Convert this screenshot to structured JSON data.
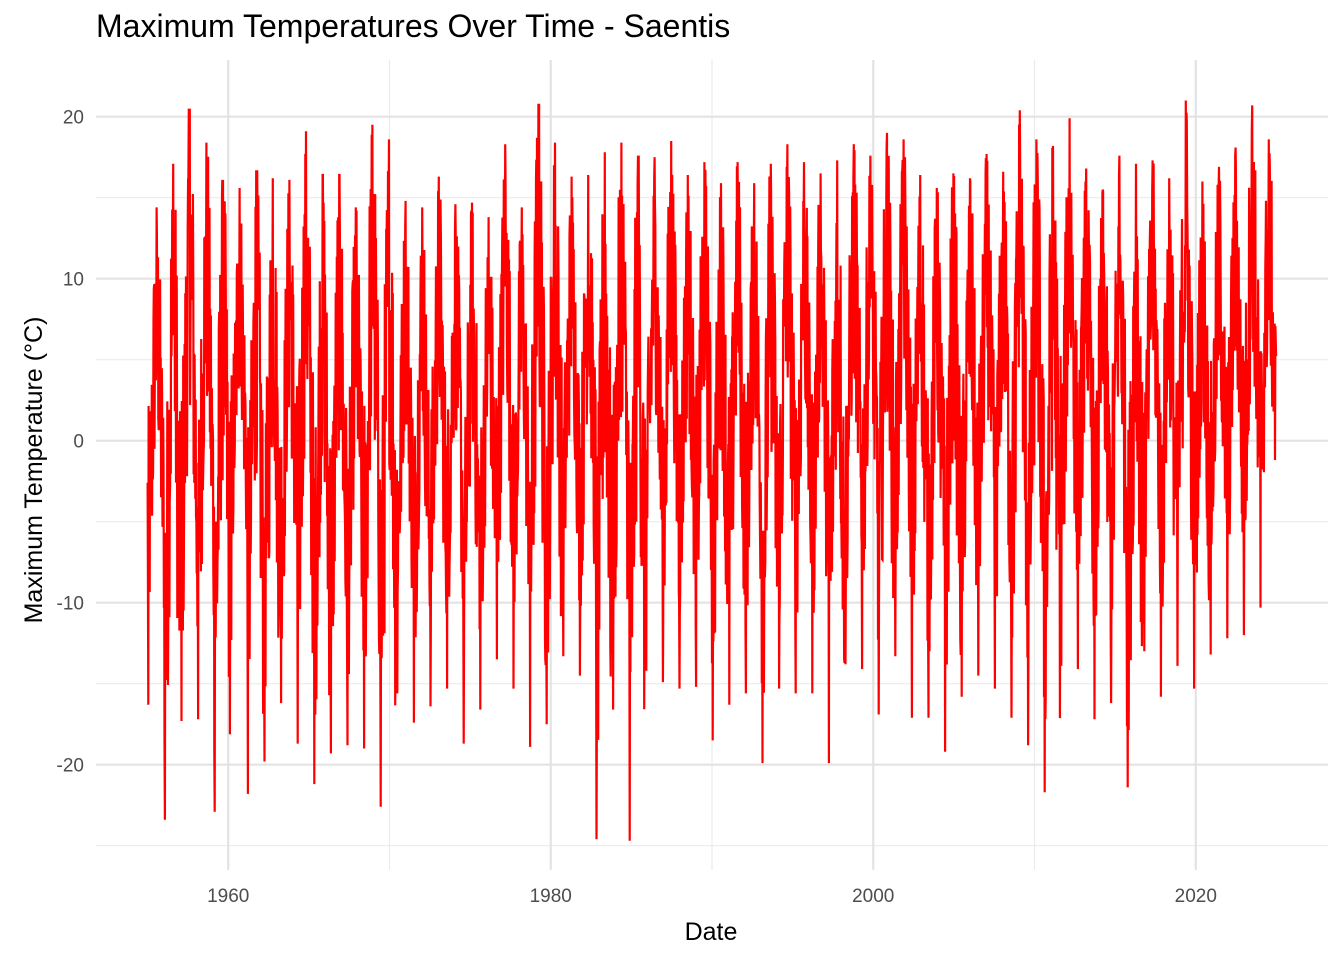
{
  "chart_data": {
    "type": "line",
    "title": "Maximum Temperatures Over Time - Saentis",
    "xlabel": "Date",
    "ylabel": "Maximum Temperature (°C)",
    "x_range": [
      1955,
      2025
    ],
    "xlim": [
      1951.8,
      2028.2
    ],
    "ylim": [
      -26.5,
      23.5
    ],
    "x_ticks": [
      1960,
      1980,
      2000,
      2020
    ],
    "x_tick_labels": [
      "1960",
      "1980",
      "2000",
      "2020"
    ],
    "x_minor_ticks": [
      1950,
      1970,
      1990,
      2010
    ],
    "y_ticks": [
      -20,
      -10,
      0,
      10,
      20
    ],
    "y_tick_labels": [
      "-20",
      "-10",
      "0",
      "10",
      "20"
    ],
    "y_minor_ticks": [
      -25,
      -15,
      -5,
      5,
      15
    ],
    "grid": true,
    "legend": "none",
    "series": [
      {
        "color": "#ff0000",
        "note": "daily maximum temperatures; annual cycle with peaks and troughs per year",
        "annual_peaks": [
          14.4,
          17.1,
          20.5,
          18.4,
          16.1,
          15.6,
          16.7,
          16.2,
          16.1,
          19.1,
          16.4,
          16.4,
          14.4,
          19.5,
          18.6,
          14.8,
          14.4,
          16.3,
          14.6,
          14.7,
          13.8,
          18.3,
          14.4,
          20.8,
          18.4,
          16.3,
          16.4,
          17.8,
          18.4,
          17.6,
          17.5,
          18.5,
          16.4,
          17.2,
          15.9,
          17.2,
          15.9,
          17.1,
          18.3,
          17.2,
          16.5,
          17.3,
          18.3,
          17.6,
          19.0,
          18.6,
          16.4,
          15.6,
          16.5,
          16.2,
          17.7,
          16.6,
          20.4,
          18.6,
          18.2,
          19.9,
          16.8,
          15.5,
          17.6,
          17.1,
          17.3,
          16.2,
          21.0,
          16.0,
          16.9,
          18.1,
          20.7,
          18.6
        ],
        "annual_troughs": [
          -16.3,
          -23.4,
          -17.3,
          -17.2,
          -22.9,
          -12.3,
          -21.8,
          -19.8,
          -16.2,
          -18.7,
          -21.2,
          -19.3,
          -18.8,
          -19.0,
          -22.6,
          -15.6,
          -17.4,
          -16.4,
          -15.3,
          -18.7,
          -16.6,
          -13.5,
          -15.3,
          -18.9,
          -17.5,
          -13.3,
          -14.5,
          -24.6,
          -16.6,
          -24.7,
          -14.2,
          -14.9,
          -15.3,
          -15.2,
          -18.5,
          -16.3,
          -15.6,
          -19.9,
          -15.3,
          -15.6,
          -15.6,
          -19.9,
          -13.8,
          -14.1,
          -16.9,
          -13.3,
          -17.1,
          -17.1,
          -19.2,
          -15.8,
          -14.5,
          -15.3,
          -17.1,
          -18.8,
          -21.7,
          -13.9,
          -14.1,
          -17.2,
          -16.2,
          -21.4,
          -13.0,
          -15.8,
          -13.9,
          -15.3,
          -13.2,
          -12.2,
          -12.0,
          -10.3
        ]
      }
    ]
  }
}
